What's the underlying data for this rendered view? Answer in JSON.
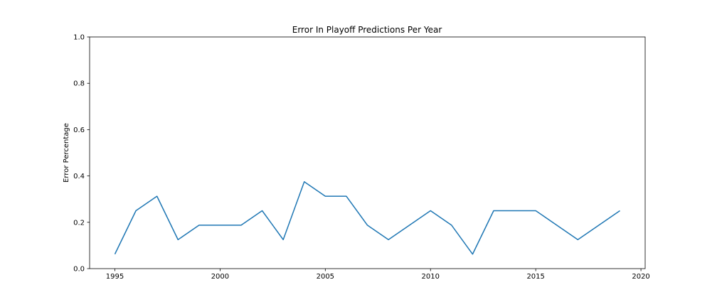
{
  "chart_data": {
    "type": "line",
    "title": "Error In Playoff Predictions Per Year",
    "xlabel": "",
    "ylabel": "Error Percentage",
    "xlim": [
      1993.8,
      2020.2
    ],
    "ylim": [
      0.0,
      1.0
    ],
    "xticks": [
      1995,
      2000,
      2005,
      2010,
      2015,
      2020
    ],
    "yticks": [
      0.0,
      0.2,
      0.4,
      0.6,
      0.8,
      1.0
    ],
    "grid": false,
    "series": [
      {
        "color": "#1f77b4",
        "x": [
          1995,
          1996,
          1997,
          1998,
          1999,
          2000,
          2001,
          2002,
          2003,
          2004,
          2005,
          2006,
          2007,
          2008,
          2009,
          2010,
          2011,
          2012,
          2013,
          2014,
          2015,
          2016,
          2017,
          2018,
          2019
        ],
        "y": [
          0.0625,
          0.25,
          0.3125,
          0.125,
          0.1875,
          0.1875,
          0.1875,
          0.25,
          0.125,
          0.375,
          0.3125,
          0.3125,
          0.1875,
          0.125,
          0.1875,
          0.25,
          0.1875,
          0.0625,
          0.25,
          0.25,
          0.25,
          0.1875,
          0.125,
          0.1875,
          0.25
        ]
      }
    ]
  }
}
